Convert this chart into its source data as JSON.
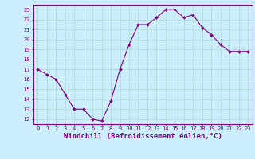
{
  "x": [
    0,
    1,
    2,
    3,
    4,
    5,
    6,
    7,
    8,
    9,
    10,
    11,
    12,
    13,
    14,
    15,
    16,
    17,
    18,
    19,
    20,
    21,
    22,
    23
  ],
  "y": [
    17.0,
    16.5,
    16.0,
    14.5,
    13.0,
    13.0,
    12.0,
    11.8,
    13.8,
    17.0,
    19.5,
    21.5,
    21.5,
    22.2,
    23.0,
    23.0,
    22.2,
    22.5,
    21.2,
    20.5,
    19.5,
    18.8,
    18.8,
    18.8
  ],
  "ylim": [
    12,
    23
  ],
  "xlim": [
    0,
    23
  ],
  "yticks": [
    12,
    13,
    14,
    15,
    16,
    17,
    18,
    19,
    20,
    21,
    22,
    23
  ],
  "xticks": [
    0,
    1,
    2,
    3,
    4,
    5,
    6,
    7,
    8,
    9,
    10,
    11,
    12,
    13,
    14,
    15,
    16,
    17,
    18,
    19,
    20,
    21,
    22,
    23
  ],
  "xlabel": "Windchill (Refroidissement éolien,°C)",
  "line_color": "#800080",
  "marker": "D",
  "marker_size": 2.0,
  "bg_color": "#cceeff",
  "grid_color": "#aaddcc",
  "tick_color": "#800080",
  "label_color": "#800080",
  "tick_fontsize": 5.0,
  "xlabel_fontsize": 6.5,
  "linewidth": 0.8
}
